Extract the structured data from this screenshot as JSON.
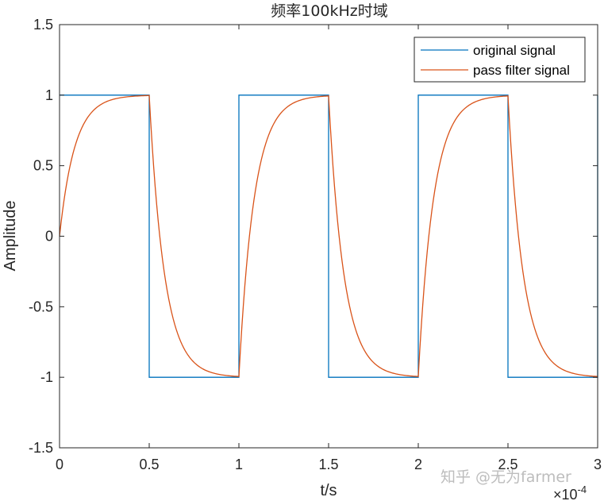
{
  "chart_data": {
    "type": "line",
    "title": "频率100kHz时域",
    "xlabel": "t/s",
    "ylabel": "Amplitude",
    "x_exponent_base": "×10",
    "x_exponent_power": "-4",
    "xlim": [
      0,
      0.0003
    ],
    "ylim": [
      -1.5,
      1.5
    ],
    "x_ticks": [
      0,
      0.5,
      1,
      1.5,
      2,
      2.5,
      3
    ],
    "x_tick_labels": [
      "0",
      "0.5",
      "1",
      "1.5",
      "2",
      "2.5",
      "3"
    ],
    "y_ticks": [
      1.5,
      1,
      0.5,
      0,
      -0.5,
      -1,
      -1.5
    ],
    "y_tick_labels": [
      "1.5",
      "1",
      "0.5",
      "0",
      "-0.5",
      "-1",
      "-1.5"
    ],
    "grid": false,
    "legend_position": "top-right",
    "series": [
      {
        "name": "original signal",
        "color": "#0072BD",
        "x": [
          0,
          5e-05,
          5e-05,
          0.0001,
          0.0001,
          0.00015,
          0.00015,
          0.0002,
          0.0002,
          0.00025,
          0.00025,
          0.0003,
          0.0003
        ],
        "y": [
          1,
          1,
          -1,
          -1,
          1,
          1,
          -1,
          -1,
          1,
          1,
          -1,
          -1,
          1
        ]
      },
      {
        "name": "pass filter signal",
        "color": "#D95319",
        "x": [
          0,
          5e-06,
          1e-05,
          1.5e-05,
          2e-05,
          3e-05,
          4e-05,
          5e-05,
          5.5e-05,
          6e-05,
          6.5e-05,
          7e-05,
          8e-05,
          9e-05,
          0.0001,
          0.000105,
          0.00011,
          0.000115,
          0.00012,
          0.00013,
          0.00014,
          0.00015,
          0.000155,
          0.00016,
          0.000165,
          0.00017,
          0.00018,
          0.00019,
          0.0002,
          0.000205,
          0.00021,
          0.000215,
          0.00022,
          0.00023,
          0.00024,
          0.00025,
          0.000255,
          0.00026,
          0.000265,
          0.00027,
          0.00028,
          0.00029,
          0.0003
        ],
        "y": [
          0,
          0.52,
          0.77,
          0.89,
          0.945,
          0.985,
          0.995,
          0.99,
          0.18,
          -0.38,
          -0.66,
          -0.82,
          -0.945,
          -0.975,
          -0.985,
          -0.19,
          0.37,
          0.66,
          0.82,
          0.945,
          0.975,
          0.985,
          0.19,
          -0.37,
          -0.66,
          -0.82,
          -0.945,
          -0.975,
          -0.985,
          -0.19,
          0.37,
          0.66,
          0.82,
          0.945,
          0.975,
          0.985,
          0.19,
          -0.37,
          -0.66,
          -0.82,
          -0.945,
          -0.975,
          -0.985
        ]
      }
    ]
  },
  "watermark": "知乎 @无为farmer"
}
